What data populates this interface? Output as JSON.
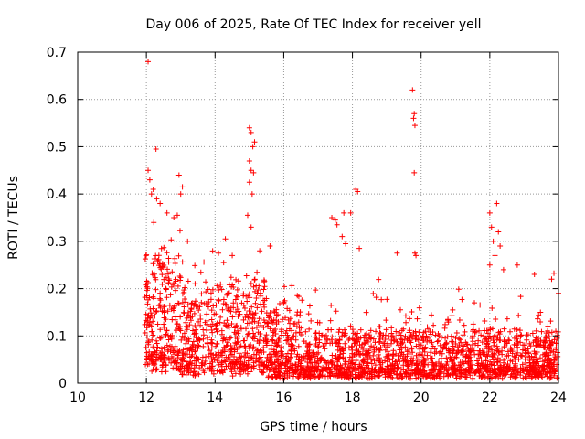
{
  "chart_data": {
    "type": "scatter",
    "title": "Day 006 of 2025, Rate Of TEC Index for receiver yell",
    "xlabel": "GPS time / hours",
    "ylabel": "ROTI / TECUs",
    "xlim": [
      10,
      24
    ],
    "ylim": [
      0,
      0.7
    ],
    "xticks": [
      "10",
      "12",
      "14",
      "16",
      "18",
      "20",
      "22",
      "24"
    ],
    "xtick_values": [
      10,
      12,
      14,
      16,
      18,
      20,
      22,
      24
    ],
    "yticks": [
      "0",
      "0.1",
      "0.2",
      "0.3",
      "0.4",
      "0.5",
      "0.6",
      "0.7"
    ],
    "ytick_values": [
      0,
      0.1,
      0.2,
      0.3,
      0.4,
      0.5,
      0.6,
      0.7
    ],
    "grid": true,
    "marker": "+",
    "color": "#ff0000",
    "series": [
      {
        "name": "ROTI",
        "points": [
          [
            12.05,
            0.68
          ],
          [
            12.28,
            0.495
          ],
          [
            12.95,
            0.44
          ],
          [
            12.05,
            0.45
          ],
          [
            12.1,
            0.43
          ],
          [
            12.15,
            0.4
          ],
          [
            12.2,
            0.41
          ],
          [
            12.3,
            0.39
          ],
          [
            12.4,
            0.38
          ],
          [
            12.6,
            0.36
          ],
          [
            13.05,
            0.415
          ],
          [
            13.0,
            0.4
          ],
          [
            12.9,
            0.355
          ],
          [
            12.8,
            0.35
          ],
          [
            13.2,
            0.3
          ],
          [
            14.3,
            0.305
          ],
          [
            14.1,
            0.275
          ],
          [
            14.5,
            0.27
          ],
          [
            14.25,
            0.255
          ],
          [
            15.0,
            0.54
          ],
          [
            15.05,
            0.53
          ],
          [
            15.1,
            0.5
          ],
          [
            15.15,
            0.51
          ],
          [
            15.0,
            0.47
          ],
          [
            15.05,
            0.45
          ],
          [
            15.12,
            0.445
          ],
          [
            15.0,
            0.425
          ],
          [
            15.08,
            0.4
          ],
          [
            14.95,
            0.355
          ],
          [
            15.05,
            0.33
          ],
          [
            15.6,
            0.29
          ],
          [
            15.3,
            0.28
          ],
          [
            17.5,
            0.345
          ],
          [
            17.55,
            0.335
          ],
          [
            17.4,
            0.35
          ],
          [
            17.75,
            0.36
          ],
          [
            17.95,
            0.36
          ],
          [
            17.7,
            0.31
          ],
          [
            18.15,
            0.405
          ],
          [
            18.1,
            0.41
          ],
          [
            17.8,
            0.295
          ],
          [
            18.2,
            0.285
          ],
          [
            19.3,
            0.275
          ],
          [
            19.75,
            0.62
          ],
          [
            19.8,
            0.57
          ],
          [
            19.78,
            0.56
          ],
          [
            19.82,
            0.545
          ],
          [
            19.8,
            0.445
          ],
          [
            19.85,
            0.27
          ],
          [
            19.82,
            0.275
          ],
          [
            22.0,
            0.36
          ],
          [
            22.05,
            0.33
          ],
          [
            22.2,
            0.38
          ],
          [
            22.25,
            0.32
          ],
          [
            22.1,
            0.3
          ],
          [
            22.3,
            0.29
          ],
          [
            22.0,
            0.25
          ],
          [
            22.15,
            0.27
          ],
          [
            22.4,
            0.24
          ],
          [
            22.8,
            0.25
          ],
          [
            23.3,
            0.23
          ],
          [
            23.8,
            0.22
          ],
          [
            24.0,
            0.19
          ]
        ]
      }
    ]
  }
}
